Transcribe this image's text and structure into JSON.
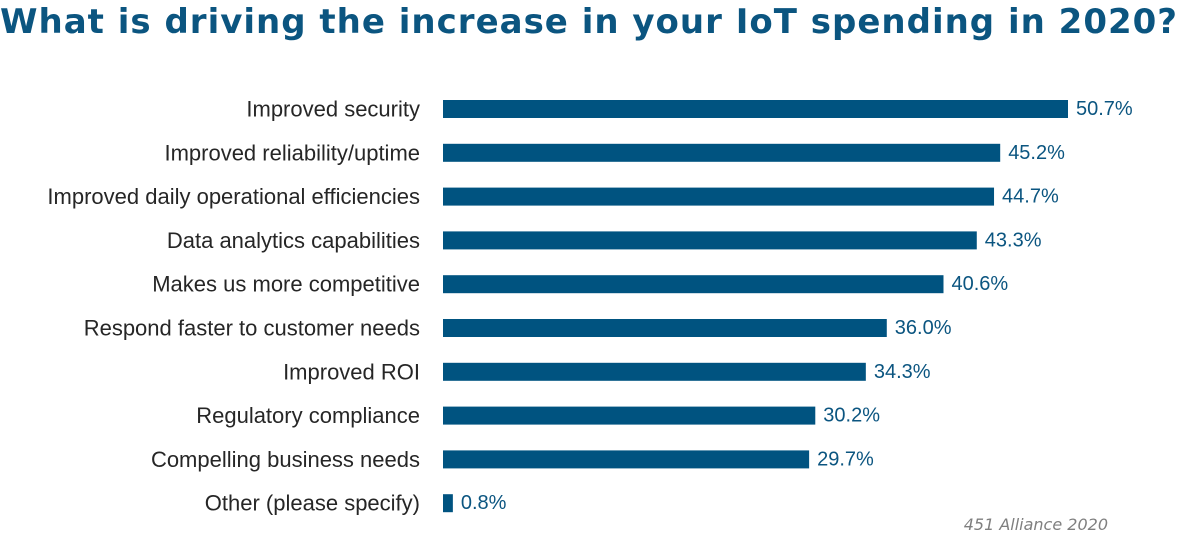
{
  "title": "What is driving the increase in your IoT spending in 2020?",
  "source": "451 Alliance 2020",
  "colors": {
    "bar": "#005380",
    "title": "#0b5580",
    "value_label": "#0b5580",
    "category_label": "#262626",
    "source": "#7f7f7f"
  },
  "chart_data": {
    "type": "bar",
    "orientation": "horizontal",
    "title": "What is driving the increase in your IoT spending in 2020?",
    "categories": [
      "Improved security",
      "Improved reliability/uptime",
      "Improved daily operational efficiencies",
      "Data analytics capabilities",
      "Makes us more competitive",
      "Respond faster to customer needs",
      "Improved ROI",
      "Regulatory compliance",
      "Compelling business needs",
      "Other (please specify)"
    ],
    "values": [
      50.7,
      45.2,
      44.7,
      43.3,
      40.6,
      36.0,
      34.3,
      30.2,
      29.7,
      0.8
    ],
    "value_labels": [
      "50.7%",
      "45.2%",
      "44.7%",
      "43.3%",
      "40.6%",
      "36.0%",
      "34.3%",
      "30.2%",
      "29.7%",
      "0.8%"
    ],
    "xlim": [
      0,
      50.7
    ],
    "grid": false,
    "legend": "none"
  }
}
